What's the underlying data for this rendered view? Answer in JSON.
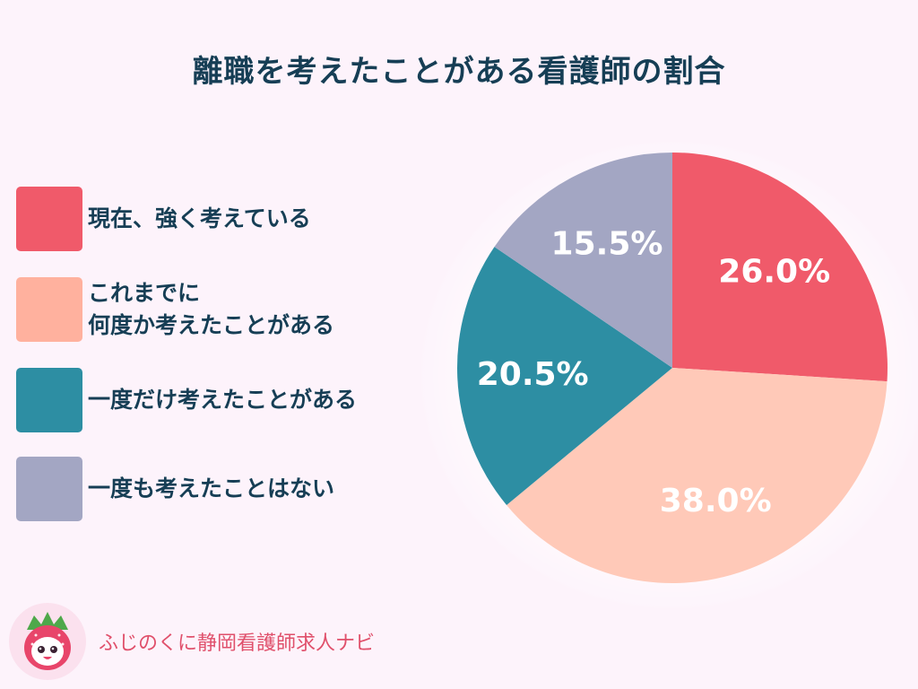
{
  "title": "離職を考えたことがある看護師の割合",
  "legend": [
    {
      "lines": [
        "現在、強く考えている"
      ],
      "color": "#f05a6a"
    },
    {
      "lines": [
        "これまでに",
        "何度か考えたことがある"
      ],
      "color": "#ffb19e"
    },
    {
      "lines": [
        "一度だけ考えたことがある"
      ],
      "color": "#2d8ea3"
    },
    {
      "lines": [
        "一度も考えたことはない"
      ],
      "color": "#a3a6c3"
    }
  ],
  "chart_data": {
    "type": "pie",
    "title": "離職を考えたことがある看護師の割合",
    "categories": [
      "現在、強く考えている",
      "これまでに何度か考えたことがある",
      "一度だけ考えたことがある",
      "一度も考えたことはない"
    ],
    "values": [
      26.0,
      38.0,
      20.5,
      15.5
    ],
    "labels": [
      "26.0%",
      "38.0%",
      "20.5%",
      "15.5%"
    ],
    "colors": [
      "#f05a6a",
      "#ffc9b8",
      "#2d8ea3",
      "#a3a6c3"
    ],
    "start_angle": "12 o'clock",
    "direction": "clockwise",
    "legend_position": "left"
  },
  "logo": {
    "text": "ふじのくに静岡看護師求人ナビ"
  }
}
